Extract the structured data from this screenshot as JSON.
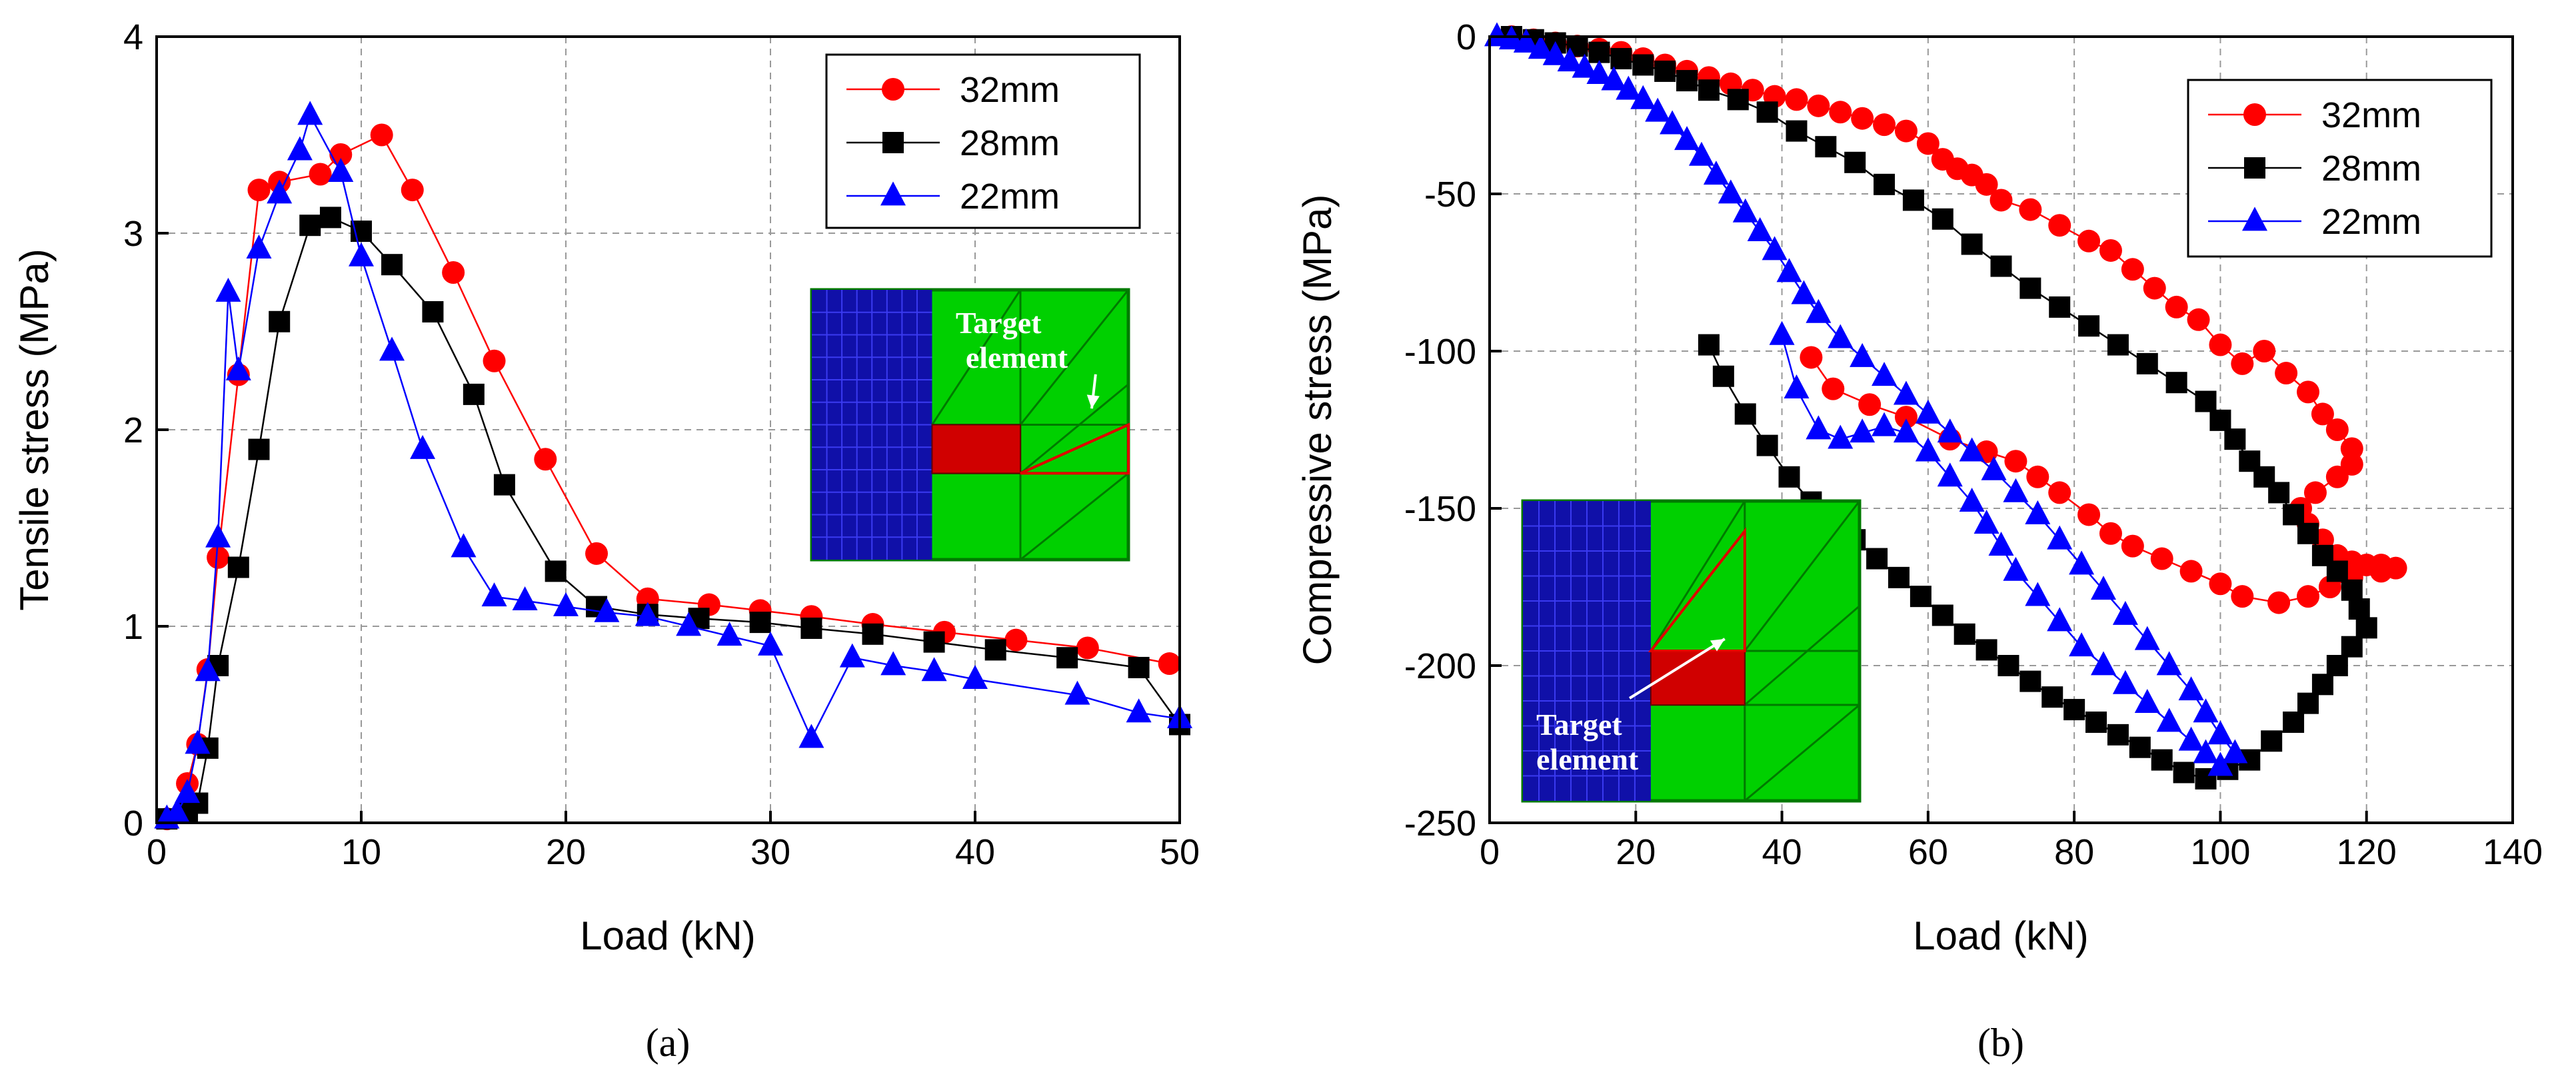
{
  "chart_data": [
    {
      "type": "line",
      "panel": "(a)",
      "title": "",
      "xlabel": "Load (kN)",
      "ylabel": "Tensile stress (MPa)",
      "xlim": [
        0,
        50
      ],
      "ylim": [
        0,
        4
      ],
      "xticks": [
        0,
        10,
        20,
        30,
        40,
        50
      ],
      "yticks": [
        0,
        1,
        2,
        3,
        4
      ],
      "grid": true,
      "legend_position": "top-right",
      "inset_label": [
        "Target",
        "element"
      ],
      "series": [
        {
          "name": "32mm",
          "color": "#ff0000",
          "marker": "circle",
          "x": [
            0.5,
            1.5,
            2,
            2.5,
            3,
            4,
            5,
            6,
            8,
            9,
            11,
            12.5,
            14.5,
            16.5,
            19,
            21.5,
            24,
            27,
            29.5,
            32,
            35,
            38.5,
            42,
            45.5,
            49.5
          ],
          "y": [
            0.02,
            0.2,
            0.4,
            0.78,
            1.35,
            2.28,
            3.22,
            3.26,
            3.3,
            3.4,
            3.5,
            3.22,
            2.8,
            2.35,
            1.85,
            1.37,
            1.14,
            1.11,
            1.08,
            1.05,
            1.01,
            0.97,
            0.93,
            0.89,
            0.81
          ]
        },
        {
          "name": "28mm",
          "color": "#000000",
          "marker": "square",
          "x": [
            0.5,
            1.5,
            2,
            2.5,
            3,
            4,
            5,
            6,
            7.5,
            8.5,
            10,
            11.5,
            13.5,
            15.5,
            17,
            19.5,
            21.5,
            24,
            26.5,
            29.5,
            32,
            35,
            38,
            41,
            44.5,
            48,
            50
          ],
          "y": [
            0.02,
            0.05,
            0.1,
            0.38,
            0.8,
            1.3,
            1.9,
            2.55,
            3.04,
            3.08,
            3.01,
            2.84,
            2.6,
            2.18,
            1.72,
            1.28,
            1.1,
            1.06,
            1.04,
            1.02,
            0.99,
            0.96,
            0.92,
            0.88,
            0.84,
            0.79,
            0.5
          ]
        },
        {
          "name": "22mm",
          "color": "#0000ff",
          "marker": "triangle",
          "x": [
            0.5,
            1,
            1.5,
            2,
            2.5,
            3,
            3.5,
            4,
            5,
            6,
            7,
            7.5,
            9,
            10,
            11.5,
            13,
            15,
            16.5,
            18,
            20,
            22,
            24,
            26,
            28,
            30,
            32,
            34,
            36,
            38,
            40,
            45,
            48,
            50
          ],
          "y": [
            0.02,
            0.05,
            0.15,
            0.4,
            0.77,
            1.45,
            2.7,
            2.3,
            2.92,
            3.2,
            3.42,
            3.6,
            3.31,
            2.88,
            2.4,
            1.9,
            1.4,
            1.15,
            1.13,
            1.1,
            1.07,
            1.05,
            1.0,
            0.95,
            0.9,
            0.43,
            0.84,
            0.8,
            0.77,
            0.73,
            0.65,
            0.56,
            0.53
          ]
        }
      ]
    },
    {
      "type": "line",
      "panel": "(b)",
      "title": "",
      "xlabel": "Load (kN)",
      "ylabel": "Compressive stress (MPa)",
      "xlim": [
        0,
        140
      ],
      "ylim": [
        -250,
        0
      ],
      "xticks": [
        0,
        20,
        40,
        60,
        80,
        100,
        120,
        140
      ],
      "yticks": [
        0,
        -50,
        -100,
        -150,
        -200,
        -250
      ],
      "grid": true,
      "legend_position": "top-right",
      "inset_label": [
        "Target",
        "element"
      ],
      "series": [
        {
          "name": "32mm",
          "color": "#ff0000",
          "marker": "circle",
          "x": [
            3,
            6,
            9,
            12,
            15,
            18,
            21,
            24,
            27,
            30,
            33,
            36,
            39,
            42,
            45,
            48,
            51,
            54,
            57,
            60,
            62,
            64,
            66,
            68,
            70,
            74,
            78,
            82,
            85,
            88,
            91,
            94,
            97,
            100,
            103,
            106,
            109,
            112,
            114,
            116,
            118,
            118,
            116,
            113,
            111,
            112,
            114,
            116,
            118,
            120,
            122,
            124,
            122,
            118,
            115,
            112,
            108,
            103,
            100,
            96,
            92,
            88,
            85,
            82,
            78,
            75,
            72,
            68,
            63,
            57,
            52,
            47,
            44
          ],
          "y": [
            0,
            -1,
            -2,
            -3,
            -4,
            -5,
            -7,
            -9,
            -11,
            -13,
            -15,
            -17,
            -19,
            -20,
            -22,
            -24,
            -26,
            -28,
            -30,
            -34,
            -39,
            -42,
            -44,
            -47,
            -52,
            -55,
            -60,
            -65,
            -68,
            -74,
            -80,
            -86,
            -90,
            -98,
            -104,
            -100,
            -107,
            -113,
            -120,
            -125,
            -131,
            -136,
            -140,
            -145,
            -150,
            -155,
            -160,
            -165,
            -167,
            -168,
            -168,
            -169,
            -170,
            -172,
            -175,
            -178,
            -180,
            -178,
            -174,
            -170,
            -166,
            -162,
            -158,
            -152,
            -145,
            -140,
            -135,
            -132,
            -128,
            -121,
            -117,
            -112,
            -102
          ]
        },
        {
          "name": "28mm",
          "color": "#000000",
          "marker": "square",
          "x": [
            3,
            6,
            9,
            12,
            15,
            18,
            21,
            24,
            27,
            30,
            34,
            38,
            42,
            46,
            50,
            54,
            58,
            62,
            66,
            70,
            74,
            78,
            82,
            86,
            90,
            94,
            98,
            100,
            102,
            104,
            106,
            108,
            110,
            112,
            114,
            116,
            118,
            119,
            120,
            118,
            116,
            114,
            112,
            110,
            107,
            104,
            101,
            98,
            95,
            92,
            89,
            86,
            83,
            80,
            77,
            74,
            71,
            68,
            65,
            62,
            59,
            56,
            53,
            50,
            47,
            44,
            41,
            38,
            35,
            32,
            30
          ],
          "y": [
            0,
            -1,
            -2,
            -3,
            -5,
            -7,
            -9,
            -11,
            -14,
            -17,
            -20,
            -24,
            -30,
            -35,
            -40,
            -47,
            -52,
            -58,
            -66,
            -73,
            -80,
            -86,
            -92,
            -98,
            -104,
            -110,
            -116,
            -122,
            -128,
            -135,
            -140,
            -145,
            -152,
            -158,
            -165,
            -170,
            -176,
            -182,
            -188,
            -194,
            -200,
            -206,
            -212,
            -218,
            -224,
            -230,
            -233,
            -236,
            -234,
            -230,
            -226,
            -222,
            -218,
            -214,
            -210,
            -205,
            -200,
            -195,
            -190,
            -184,
            -178,
            -172,
            -166,
            -160,
            -154,
            -148,
            -140,
            -130,
            -120,
            -108,
            -98
          ]
        },
        {
          "name": "22mm",
          "color": "#0000ff",
          "marker": "triangle",
          "x": [
            1,
            3,
            5,
            7,
            9,
            11,
            13,
            15,
            17,
            19,
            21,
            23,
            25,
            27,
            29,
            31,
            33,
            35,
            37,
            39,
            41,
            43,
            45,
            48,
            51,
            54,
            57,
            60,
            63,
            66,
            69,
            72,
            75,
            78,
            81,
            84,
            87,
            90,
            93,
            96,
            98,
            100,
            102,
            100,
            98,
            96,
            93,
            90,
            87,
            84,
            81,
            78,
            75,
            72,
            70,
            68,
            66,
            63,
            60,
            57,
            54,
            51,
            48,
            45,
            42,
            40
          ],
          "y": [
            0,
            -1,
            -2,
            -4,
            -6,
            -8,
            -10,
            -12,
            -14,
            -17,
            -20,
            -24,
            -28,
            -33,
            -38,
            -44,
            -50,
            -56,
            -62,
            -68,
            -75,
            -82,
            -88,
            -96,
            -102,
            -108,
            -114,
            -120,
            -126,
            -132,
            -138,
            -145,
            -152,
            -160,
            -168,
            -176,
            -184,
            -192,
            -200,
            -208,
            -215,
            -222,
            -228,
            -232,
            -228,
            -224,
            -218,
            -212,
            -206,
            -200,
            -194,
            -186,
            -178,
            -170,
            -162,
            -155,
            -148,
            -140,
            -132,
            -126,
            -124,
            -126,
            -128,
            -125,
            -112,
            -95
          ]
        }
      ]
    }
  ],
  "captions": {
    "a": "(a)",
    "b": "(b)"
  }
}
